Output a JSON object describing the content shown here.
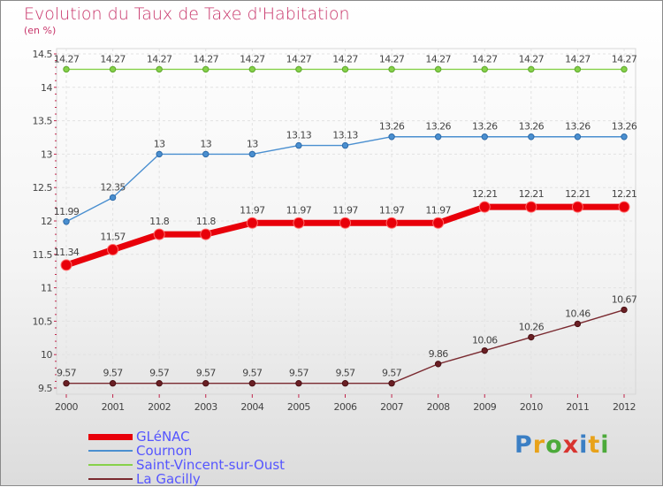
{
  "header": {
    "title": "Evolution du Taux de Taxe d'Habitation",
    "subtitle": "(en %)"
  },
  "logo": {
    "text": "Proxiti",
    "colors": [
      "#3b7fc4",
      "#e8a21a",
      "#4caa3a",
      "#d8342f",
      "#3b7fc4",
      "#e8a21a",
      "#4caa3a"
    ]
  },
  "chart_data": {
    "type": "line",
    "title": "Evolution du Taux de Taxe d'Habitation",
    "ylabel": "(en %)",
    "x": [
      "2000",
      "2001",
      "2002",
      "2003",
      "2004",
      "2005",
      "2006",
      "2007",
      "2008",
      "2009",
      "2010",
      "2011",
      "2012"
    ],
    "ylim": [
      9.5,
      14.5
    ],
    "yticks": [
      "9.5",
      "10",
      "10.5",
      "11",
      "11.5",
      "12",
      "12.5",
      "13",
      "13.5",
      "14",
      "14.5"
    ],
    "grid": true,
    "legend_position": "bottom-left",
    "series": [
      {
        "name": "GLéNAC",
        "color": "#e8000a",
        "values": [
          11.34,
          11.57,
          11.8,
          11.8,
          11.97,
          11.97,
          11.97,
          11.97,
          11.97,
          12.21,
          12.21,
          12.21,
          12.21
        ],
        "labels": [
          "11.34",
          "11.57",
          "11.8",
          "11.8",
          "11.97",
          "11.97",
          "11.97",
          "11.97",
          "11.97",
          "12.21",
          "12.21",
          "12.21",
          "12.21"
        ]
      },
      {
        "name": "Cournon",
        "color": "#4a8fd0",
        "values": [
          11.99,
          12.35,
          13,
          13,
          13,
          13.13,
          13.13,
          13.26,
          13.26,
          13.26,
          13.26,
          13.26,
          13.26
        ],
        "labels": [
          "11.99",
          "12.35",
          "13",
          "13",
          "13",
          "13.13",
          "13.13",
          "13.26",
          "13.26",
          "13.26",
          "13.26",
          "13.26",
          "13.26"
        ]
      },
      {
        "name": "Saint-Vincent-sur-Oust",
        "color": "#86d14a",
        "values": [
          14.27,
          14.27,
          14.27,
          14.27,
          14.27,
          14.27,
          14.27,
          14.27,
          14.27,
          14.27,
          14.27,
          14.27,
          14.27
        ],
        "labels": [
          "14.27",
          "14.27",
          "14.27",
          "14.27",
          "14.27",
          "14.27",
          "14.27",
          "14.27",
          "14.27",
          "14.27",
          "14.27",
          "14.27",
          "14.27"
        ]
      },
      {
        "name": "La Gacilly",
        "color": "#7a2a30",
        "values": [
          9.57,
          9.57,
          9.57,
          9.57,
          9.57,
          9.57,
          9.57,
          9.57,
          9.86,
          10.06,
          10.26,
          10.46,
          10.67
        ],
        "labels": [
          "9.57",
          "9.57",
          "9.57",
          "9.57",
          "9.57",
          "9.57",
          "9.57",
          "9.57",
          "9.86",
          "10.06",
          "10.26",
          "10.46",
          "10.67"
        ]
      }
    ]
  }
}
